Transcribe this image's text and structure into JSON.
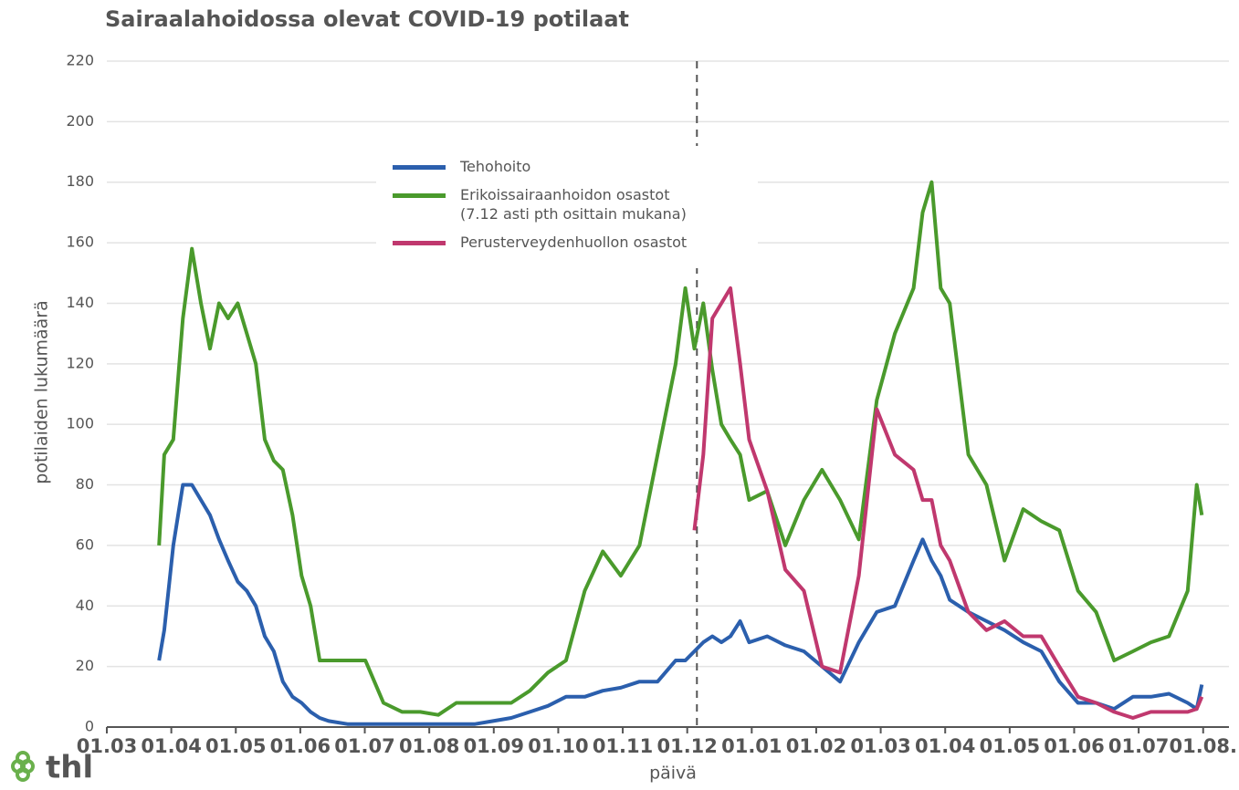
{
  "chart_data": {
    "type": "line",
    "title": "Sairaalahoidossa olevat COVID-19 potilaat",
    "y_label": "potilaiden lukumäärä",
    "x_label": "päivä",
    "logo": "thl",
    "xlim": [
      0,
      17.4
    ],
    "xticks": [
      {
        "value": 0,
        "label": "01.03"
      },
      {
        "value": 1,
        "label": "01.04"
      },
      {
        "value": 2,
        "label": "01.05"
      },
      {
        "value": 3,
        "label": "01.06"
      },
      {
        "value": 4,
        "label": "01.07"
      },
      {
        "value": 5,
        "label": "01.08"
      },
      {
        "value": 6,
        "label": "01.09"
      },
      {
        "value": 7,
        "label": "01.10"
      },
      {
        "value": 8,
        "label": "01.11"
      },
      {
        "value": 9,
        "label": "01.12"
      },
      {
        "value": 10,
        "label": "01.01"
      },
      {
        "value": 11,
        "label": "01.02"
      },
      {
        "value": 12,
        "label": "01.03"
      },
      {
        "value": 13,
        "label": "01.04"
      },
      {
        "value": 14,
        "label": "01.05"
      },
      {
        "value": 15,
        "label": "01.06"
      },
      {
        "value": 16,
        "label": "01.07"
      },
      {
        "value": 17,
        "label": "01.08."
      }
    ],
    "ylim": [
      0,
      220
    ],
    "yticks": [
      0,
      20,
      40,
      60,
      80,
      100,
      120,
      140,
      160,
      180,
      200,
      220
    ],
    "grid": true,
    "vline_x": 9.15,
    "x": [
      0.81,
      0.89,
      1.03,
      1.18,
      1.32,
      1.46,
      1.6,
      1.74,
      1.88,
      2.03,
      2.17,
      2.31,
      2.45,
      2.59,
      2.73,
      2.88,
      3.02,
      3.16,
      3.3,
      3.44,
      3.73,
      4.01,
      4.29,
      4.58,
      4.86,
      5.14,
      5.42,
      5.71,
      5.99,
      6.27,
      6.56,
      6.84,
      7.12,
      7.41,
      7.69,
      7.97,
      8.26,
      8.54,
      8.82,
      8.97,
      9.11,
      9.25,
      9.39,
      9.53,
      9.67,
      9.82,
      9.96,
      10.24,
      10.52,
      10.81,
      11.09,
      11.37,
      11.66,
      11.94,
      12.22,
      12.51,
      12.65,
      12.79,
      12.93,
      13.07,
      13.36,
      13.64,
      13.92,
      14.21,
      14.49,
      14.77,
      15.06,
      15.34,
      15.62,
      15.91,
      16.19,
      16.47,
      16.76,
      16.9,
      16.98
    ],
    "series": [
      {
        "name": "Tehohoito",
        "color": "#2b5fad",
        "values": [
          22,
          32,
          60,
          80,
          80,
          75,
          70,
          62,
          55,
          48,
          45,
          40,
          30,
          25,
          15,
          10,
          8,
          5,
          3,
          2,
          1,
          1,
          1,
          1,
          1,
          1,
          1,
          1,
          2,
          3,
          5,
          7,
          10,
          10,
          12,
          13,
          15,
          15,
          22,
          22,
          25,
          28,
          30,
          28,
          30,
          35,
          28,
          30,
          27,
          25,
          20,
          15,
          28,
          38,
          40,
          55,
          62,
          55,
          50,
          42,
          38,
          35,
          32,
          28,
          25,
          15,
          8,
          8,
          6,
          10,
          10,
          11,
          8,
          6,
          14
        ]
      },
      {
        "name": "Erikoissairaanhoidon osastot\n (7.12 asti pth osittain mukana)",
        "color": "#4a9a2c",
        "values": [
          60,
          90,
          95,
          135,
          158,
          140,
          125,
          140,
          135,
          140,
          130,
          120,
          95,
          88,
          85,
          70,
          50,
          40,
          22,
          22,
          22,
          22,
          8,
          5,
          5,
          4,
          8,
          8,
          8,
          8,
          12,
          18,
          22,
          45,
          58,
          50,
          60,
          90,
          120,
          145,
          125,
          140,
          118,
          100,
          95,
          90,
          75,
          78,
          60,
          75,
          85,
          75,
          62,
          108,
          130,
          145,
          170,
          180,
          145,
          140,
          90,
          80,
          55,
          72,
          68,
          65,
          45,
          38,
          22,
          25,
          28,
          30,
          45,
          80,
          70
        ]
      },
      {
        "name": "Perusterveydenhuollon osastot",
        "color": "#c0386e",
        "values": [
          null,
          null,
          null,
          null,
          null,
          null,
          null,
          null,
          null,
          null,
          null,
          null,
          null,
          null,
          null,
          null,
          null,
          null,
          null,
          null,
          null,
          null,
          null,
          null,
          null,
          null,
          null,
          null,
          null,
          null,
          null,
          null,
          null,
          null,
          null,
          null,
          null,
          null,
          null,
          null,
          65,
          90,
          135,
          140,
          145,
          120,
          95,
          78,
          52,
          45,
          20,
          18,
          50,
          105,
          90,
          85,
          75,
          75,
          60,
          55,
          38,
          32,
          35,
          30,
          30,
          20,
          10,
          8,
          5,
          3,
          5,
          5,
          5,
          6,
          10
        ]
      }
    ]
  }
}
